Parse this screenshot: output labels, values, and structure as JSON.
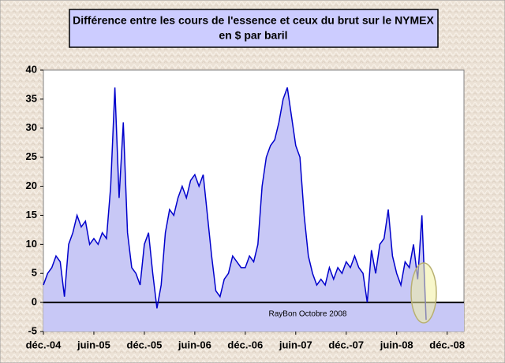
{
  "chart_data": {
    "type": "area",
    "title": "Différence entre les cours de l'essence et ceux du brut sur le NYMEX",
    "subtitle": "en $ par baril",
    "annotation": "RayBon Octobre 2008",
    "color": "#0000cc",
    "fill_color": "#c8c8f6",
    "grid": false,
    "xlim": [
      0,
      50
    ],
    "xticks": [
      {
        "value": 0,
        "label": "déc.-04"
      },
      {
        "value": 6,
        "label": "juin-05"
      },
      {
        "value": 12,
        "label": "déc.-05"
      },
      {
        "value": 18,
        "label": "juin-06"
      },
      {
        "value": 24,
        "label": "déc.-06"
      },
      {
        "value": 30,
        "label": "juin-07"
      },
      {
        "value": 36,
        "label": "déc.-07"
      },
      {
        "value": 42,
        "label": "juin-08"
      },
      {
        "value": 48,
        "label": "déc.-08"
      }
    ],
    "ylim": [
      -5,
      40
    ],
    "yticks": [
      -5,
      0,
      5,
      10,
      15,
      20,
      25,
      30,
      35,
      40
    ],
    "x": [
      0,
      0.5,
      1,
      1.5,
      2,
      2.5,
      3,
      3.5,
      4,
      4.5,
      5,
      5.5,
      6,
      6.5,
      7,
      7.5,
      8,
      8.5,
      9,
      9.5,
      10,
      10.5,
      11,
      11.5,
      12,
      12.5,
      13,
      13.5,
      14,
      14.5,
      15,
      15.5,
      16,
      16.5,
      17,
      17.5,
      18,
      18.5,
      19,
      19.5,
      20,
      20.5,
      21,
      21.5,
      22,
      22.5,
      23,
      23.5,
      24,
      24.5,
      25,
      25.5,
      26,
      26.5,
      27,
      27.5,
      28,
      28.5,
      29,
      29.5,
      30,
      30.5,
      31,
      31.5,
      32,
      32.5,
      33,
      33.5,
      34,
      34.5,
      35,
      35.5,
      36,
      36.5,
      37,
      37.5,
      38,
      38.5,
      39,
      39.5,
      40,
      40.5,
      41,
      41.5,
      42,
      42.5,
      43,
      43.5,
      44,
      44.5,
      45,
      45.5
    ],
    "values": [
      3,
      5,
      6,
      8,
      7,
      1,
      10,
      12,
      15,
      13,
      14,
      10,
      11,
      10,
      12,
      11,
      20,
      37,
      18,
      31,
      12,
      6,
      5,
      3,
      10,
      12,
      5,
      -1,
      3,
      12,
      16,
      15,
      18,
      20,
      18,
      21,
      22,
      20,
      22,
      15,
      8,
      2,
      1,
      4,
      5,
      8,
      7,
      6,
      6,
      8,
      7,
      10,
      20,
      25,
      27,
      28,
      31,
      35,
      37,
      32,
      27,
      25,
      15,
      8,
      5,
      3,
      4,
      3,
      6,
      4,
      6,
      5,
      7,
      6,
      8,
      6,
      5,
      0,
      9,
      5,
      10,
      11,
      16,
      8,
      5,
      3,
      7,
      6,
      10,
      4,
      15,
      -3
    ]
  }
}
